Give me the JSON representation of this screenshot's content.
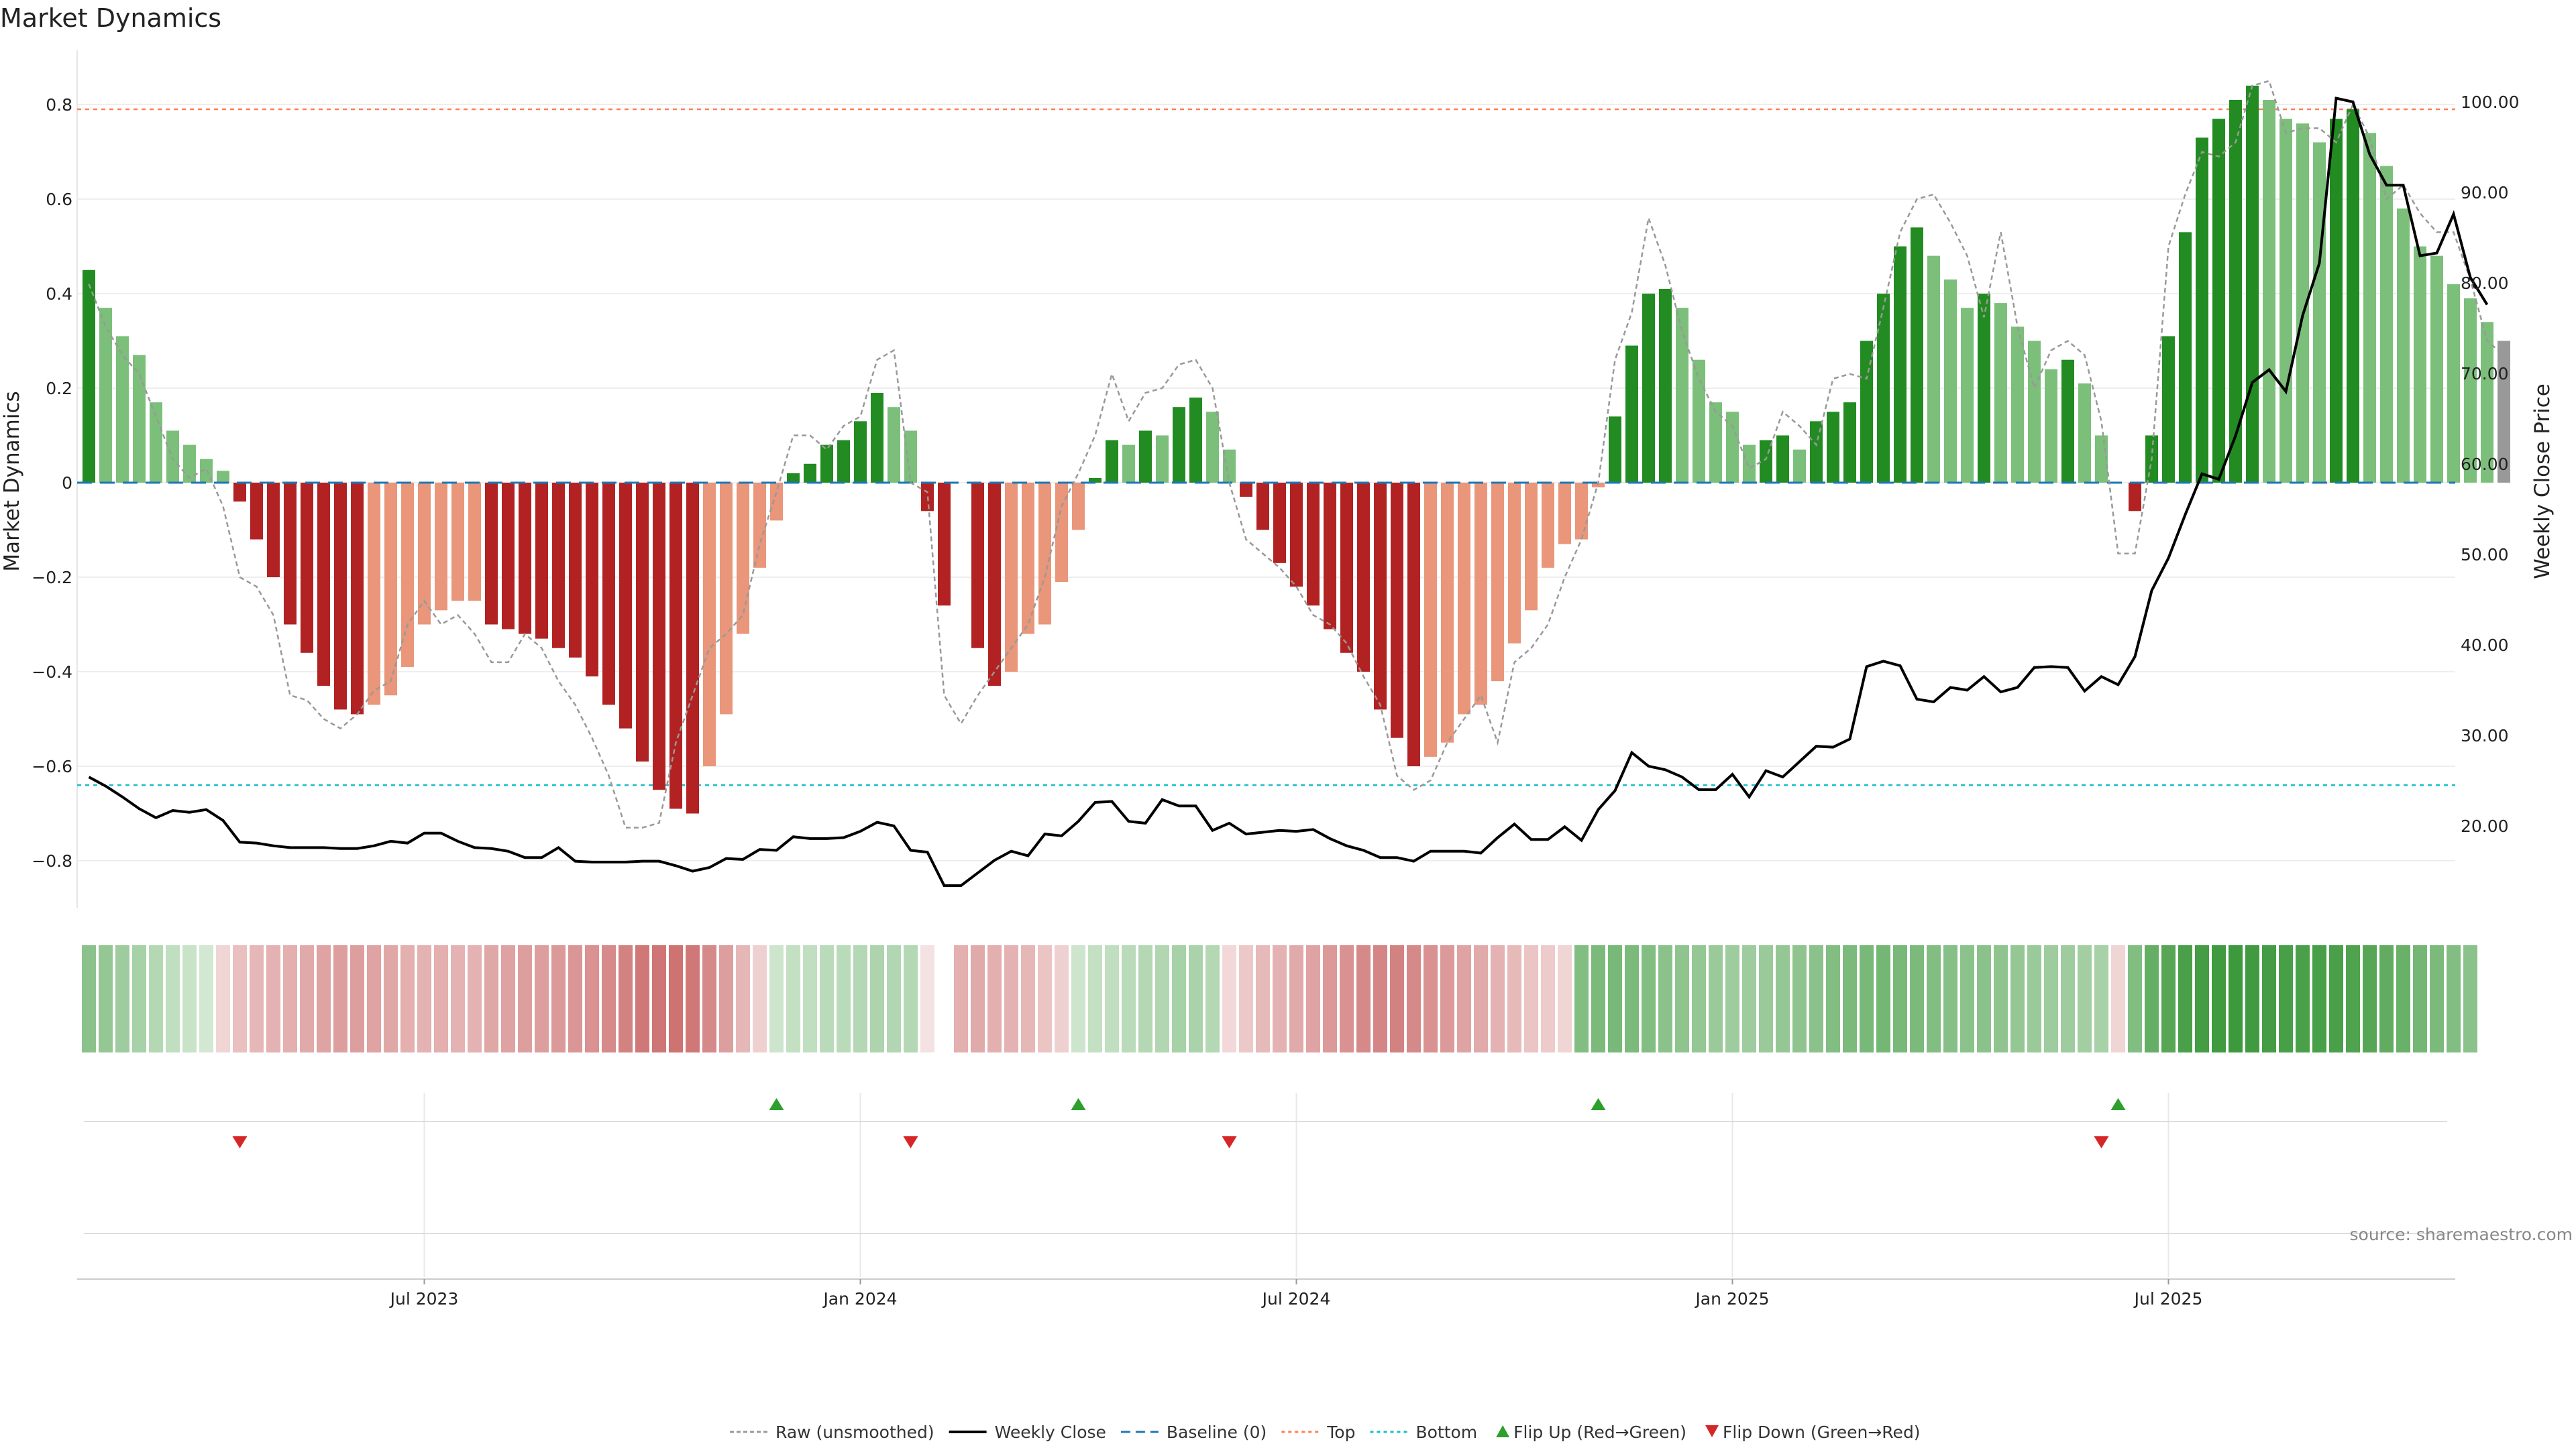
{
  "colors": {
    "strong_up": "#228b22",
    "weak_up": "#7bbf7b",
    "strong_down": "#b22222",
    "weak_down": "#e9967a",
    "raw": "#999999",
    "close": "#000000",
    "baseline": "#1f77b4",
    "top": "#ff7f50",
    "bottom": "#17becf",
    "flip_up": "#2ca02c",
    "flip_down": "#d62728"
  },
  "chart_data": {
    "type": "bar",
    "title": "Market Dynamics",
    "ylabel_left": "Market Dynamics",
    "ylabel_right": "Weekly Close Price",
    "ylim_left": [
      -0.9,
      0.9
    ],
    "ylim_right": [
      12,
      102
    ],
    "y_ticks_left": [
      "0.8",
      "0.6",
      "0.4",
      "0.2",
      "0",
      "−0.2",
      "−0.4",
      "−0.6",
      "−0.8"
    ],
    "y_tick_values_left": [
      0.8,
      0.6,
      0.4,
      0.2,
      0,
      -0.2,
      -0.4,
      -0.6,
      -0.8
    ],
    "y_ticks_right": [
      "100.00",
      "90.00",
      "80.00",
      "70.00",
      "60.00",
      "50.00",
      "40.00",
      "30.00",
      "20.00"
    ],
    "y_tick_values_right": [
      100,
      90,
      80,
      70,
      60,
      50,
      40,
      30,
      20
    ],
    "x_ticks": [
      "Jul 2023",
      "Jan 2024",
      "Jul 2024",
      "Jan 2025",
      "Jul 2025"
    ],
    "x_tick_weeks": [
      20,
      46,
      72,
      98,
      124
    ],
    "top_threshold": 0.79,
    "bottom_threshold": -0.64,
    "baseline": 0,
    "bars": [
      0.45,
      0.37,
      0.31,
      0.27,
      0.17,
      0.11,
      0.08,
      0.05,
      0.025,
      -0.04,
      -0.12,
      -0.2,
      -0.3,
      -0.36,
      -0.43,
      -0.48,
      -0.49,
      -0.47,
      -0.45,
      -0.39,
      -0.3,
      -0.27,
      -0.25,
      -0.25,
      -0.3,
      -0.31,
      -0.32,
      -0.33,
      -0.35,
      -0.37,
      -0.41,
      -0.47,
      -0.52,
      -0.59,
      -0.65,
      -0.69,
      -0.7,
      -0.6,
      -0.49,
      -0.32,
      -0.18,
      -0.08,
      0.02,
      0.04,
      0.08,
      0.09,
      0.13,
      0.19,
      0.16,
      0.11,
      -0.06,
      -0.26,
      0,
      -0.35,
      -0.43,
      -0.4,
      -0.32,
      -0.3,
      -0.21,
      -0.1,
      0.01,
      0.09,
      0.08,
      0.11,
      0.1,
      0.16,
      0.18,
      0.15,
      0.07,
      -0.03,
      -0.1,
      -0.17,
      -0.22,
      -0.26,
      -0.31,
      -0.36,
      -0.4,
      -0.48,
      -0.54,
      -0.6,
      -0.58,
      -0.55,
      -0.49,
      -0.47,
      -0.42,
      -0.34,
      -0.27,
      -0.18,
      -0.13,
      -0.12,
      -0.01,
      0.14,
      0.29,
      0.4,
      0.41,
      0.37,
      0.26,
      0.17,
      0.15,
      0.08,
      0.09,
      0.1,
      0.07,
      0.13,
      0.15,
      0.17,
      0.3,
      0.4,
      0.5,
      0.54,
      0.48,
      0.43,
      0.37,
      0.4,
      0.38,
      0.33,
      0.3,
      0.24,
      0.26,
      0.21,
      0.1,
      0,
      -0.06,
      0.1,
      0.31,
      0.53,
      0.73,
      0.77,
      0.81,
      0.84,
      0.81,
      0.77,
      0.76,
      0.72,
      0.77,
      0.79,
      0.74,
      0.67,
      0.58,
      0.5,
      0.48,
      0.42,
      0.39,
      0.34,
      0.3
    ],
    "bar_colors": [
      "su",
      "wu",
      "wu",
      "wu",
      "wu",
      "wu",
      "wu",
      "wu",
      "wu",
      "sd",
      "sd",
      "sd",
      "sd",
      "sd",
      "sd",
      "sd",
      "sd",
      "wd",
      "wd",
      "wd",
      "wd",
      "wd",
      "wd",
      "wd",
      "sd",
      "sd",
      "sd",
      "sd",
      "sd",
      "sd",
      "sd",
      "sd",
      "sd",
      "sd",
      "sd",
      "sd",
      "sd",
      "wd",
      "wd",
      "wd",
      "wd",
      "wd",
      "su",
      "su",
      "su",
      "su",
      "su",
      "su",
      "wu",
      "wu",
      "sd",
      "sd",
      "sd",
      "sd",
      "sd",
      "wd",
      "wd",
      "wd",
      "wd",
      "wd",
      "su",
      "su",
      "wu",
      "su",
      "wu",
      "su",
      "su",
      "wu",
      "wu",
      "sd",
      "sd",
      "sd",
      "sd",
      "sd",
      "sd",
      "sd",
      "sd",
      "sd",
      "sd",
      "sd",
      "wd",
      "wd",
      "wd",
      "wd",
      "wd",
      "wd",
      "wd",
      "wd",
      "wd",
      "wd",
      "wd",
      "su",
      "su",
      "su",
      "su",
      "wu",
      "wu",
      "wu",
      "wu",
      "wu",
      "su",
      "su",
      "wu",
      "su",
      "su",
      "su",
      "su",
      "su",
      "su",
      "su",
      "wu",
      "wu",
      "wu",
      "su",
      "wu",
      "wu",
      "wu",
      "wu",
      "su",
      "wu",
      "wu",
      "sd",
      "sd",
      "su",
      "su",
      "su",
      "su",
      "su",
      "su",
      "su",
      "wu",
      "wu",
      "wu",
      "wu",
      "su",
      "su",
      "wu",
      "wu",
      "wu",
      "wu",
      "wu",
      "wu",
      "wu",
      "wu"
    ],
    "raw": [
      0.42,
      0.33,
      0.27,
      0.23,
      0.14,
      0.05,
      0.01,
      0.03,
      -0.05,
      -0.2,
      -0.22,
      -0.28,
      -0.45,
      -0.46,
      -0.5,
      -0.52,
      -0.49,
      -0.44,
      -0.42,
      -0.3,
      -0.25,
      -0.3,
      -0.28,
      -0.32,
      -0.38,
      -0.38,
      -0.32,
      -0.35,
      -0.42,
      -0.47,
      -0.54,
      -0.62,
      -0.73,
      -0.73,
      -0.72,
      -0.55,
      -0.45,
      -0.35,
      -0.32,
      -0.28,
      -0.13,
      -0.02,
      0.1,
      0.1,
      0.07,
      0.12,
      0.14,
      0.26,
      0.28,
      0.0,
      -0.02,
      -0.45,
      -0.51,
      -0.45,
      -0.4,
      -0.35,
      -0.3,
      -0.2,
      -0.05,
      0.02,
      0.1,
      0.23,
      0.13,
      0.19,
      0.2,
      0.25,
      0.26,
      0.2,
      0.0,
      -0.12,
      -0.15,
      -0.18,
      -0.22,
      -0.28,
      -0.3,
      -0.34,
      -0.41,
      -0.47,
      -0.62,
      -0.65,
      -0.63,
      -0.55,
      -0.5,
      -0.45,
      -0.55,
      -0.38,
      -0.35,
      -0.3,
      -0.2,
      -0.12,
      0.0,
      0.26,
      0.36,
      0.56,
      0.46,
      0.32,
      0.22,
      0.15,
      0.12,
      0.03,
      0.05,
      0.15,
      0.12,
      0.08,
      0.22,
      0.23,
      0.22,
      0.37,
      0.53,
      0.6,
      0.61,
      0.55,
      0.48,
      0.35,
      0.53,
      0.33,
      0.2,
      0.28,
      0.3,
      0.27,
      0.13,
      -0.15,
      -0.15,
      0.05,
      0.5,
      0.61,
      0.7,
      0.69,
      0.72,
      0.84,
      0.85,
      0.74,
      0.75,
      0.75,
      0.72,
      0.8,
      0.73,
      0.6,
      0.63,
      0.57,
      0.53,
      0.53,
      0.43,
      0.3,
      0.27
    ],
    "close": [
      25.4,
      24.4,
      23.2,
      21.9,
      20.9,
      21.7,
      21.5,
      21.8,
      20.6,
      18.2,
      18.1,
      17.8,
      17.6,
      17.6,
      17.6,
      17.5,
      17.5,
      17.8,
      18.3,
      18.1,
      19.2,
      19.2,
      18.3,
      17.6,
      17.5,
      17.2,
      16.5,
      16.5,
      17.6,
      16.1,
      16.0,
      16.0,
      16.0,
      16.1,
      16.1,
      15.6,
      15.0,
      15.4,
      16.4,
      16.3,
      17.4,
      17.3,
      18.8,
      18.6,
      18.6,
      18.7,
      19.4,
      20.4,
      20.0,
      17.3,
      17.1,
      13.4,
      13.4,
      14.8,
      16.2,
      17.2,
      16.7,
      19.1,
      18.9,
      20.5,
      22.6,
      22.7,
      20.5,
      20.3,
      22.9,
      22.2,
      22.2,
      19.5,
      20.3,
      19.1,
      19.3,
      19.5,
      19.4,
      19.6,
      18.6,
      17.8,
      17.3,
      16.5,
      16.5,
      16.1,
      17.2,
      17.2,
      17.2,
      17.0,
      18.7,
      20.2,
      18.5,
      18.5,
      19.9,
      18.4,
      21.8,
      23.9,
      28.1,
      26.6,
      26.2,
      25.4,
      24.0,
      24.0,
      25.7,
      23.2,
      26.1,
      25.4,
      27.1,
      28.8,
      28.7,
      29.6,
      37.6,
      38.2,
      37.7,
      34.0,
      33.7,
      35.3,
      35.0,
      36.5,
      34.8,
      35.3,
      37.5,
      37.6,
      37.5,
      34.9,
      36.5,
      35.6,
      38.7,
      46.0,
      49.6,
      54.4,
      58.9,
      58.3,
      63.1,
      69.0,
      70.4,
      68.0,
      76.4,
      82.2,
      100.4,
      100.0,
      94.2,
      90.8,
      90.8,
      83.0,
      83.3,
      87.6,
      80.6,
      77.6
    ],
    "heat_strip": [
      0.5,
      0.45,
      0.4,
      0.35,
      0.28,
      0.22,
      0.17,
      0.12,
      -0.12,
      -0.25,
      -0.3,
      -0.33,
      -0.35,
      -0.38,
      -0.42,
      -0.45,
      -0.45,
      -0.42,
      -0.4,
      -0.35,
      -0.33,
      -0.35,
      -0.33,
      -0.33,
      -0.4,
      -0.43,
      -0.45,
      -0.45,
      -0.48,
      -0.5,
      -0.53,
      -0.57,
      -0.62,
      -0.68,
      -0.7,
      -0.72,
      -0.68,
      -0.58,
      -0.45,
      -0.3,
      -0.15,
      0.15,
      0.2,
      0.22,
      0.25,
      0.25,
      0.28,
      0.32,
      0.3,
      0.28,
      -0.05,
      null,
      -0.35,
      -0.38,
      -0.35,
      -0.33,
      -0.3,
      -0.22,
      -0.15,
      0.15,
      0.2,
      0.22,
      0.25,
      0.28,
      0.3,
      0.35,
      0.33,
      0.28,
      -0.1,
      -0.2,
      -0.28,
      -0.33,
      -0.38,
      -0.42,
      -0.48,
      -0.53,
      -0.58,
      -0.6,
      -0.62,
      -0.58,
      -0.53,
      -0.48,
      -0.42,
      -0.38,
      -0.33,
      -0.28,
      -0.22,
      -0.18,
      -0.12,
      0.55,
      0.58,
      0.6,
      0.58,
      0.55,
      0.5,
      0.48,
      0.45,
      0.42,
      0.4,
      0.4,
      0.42,
      0.45,
      0.48,
      0.5,
      0.55,
      0.58,
      0.6,
      0.62,
      0.6,
      0.58,
      0.55,
      0.52,
      0.5,
      0.5,
      0.48,
      0.45,
      0.42,
      0.4,
      0.4,
      0.38,
      0.35,
      -0.12,
      0.55,
      0.7,
      0.78,
      0.85,
      0.88,
      0.9,
      0.92,
      0.9,
      0.88,
      0.86,
      0.85,
      0.86,
      0.85,
      0.82,
      0.78,
      0.72,
      0.68,
      0.62,
      0.58,
      0.55,
      0.5
    ],
    "flips_up_weeks": [
      41,
      59,
      90,
      121
    ],
    "flips_down_weeks": [
      9,
      49,
      68,
      120
    ],
    "n_weeks": 143
  },
  "legend": [
    {
      "label": "Raw (unsmoothed)",
      "kind": "raw"
    },
    {
      "label": "Weekly Close",
      "kind": "close"
    },
    {
      "label": "Baseline (0)",
      "kind": "baseline"
    },
    {
      "label": "Top",
      "kind": "top"
    },
    {
      "label": "Bottom",
      "kind": "bottom"
    },
    {
      "label": "Flip Up (Red→Green)",
      "kind": "flip_up"
    },
    {
      "label": "Flip Down (Green→Red)",
      "kind": "flip_down"
    }
  ],
  "source": "source: sharemaestro.com"
}
